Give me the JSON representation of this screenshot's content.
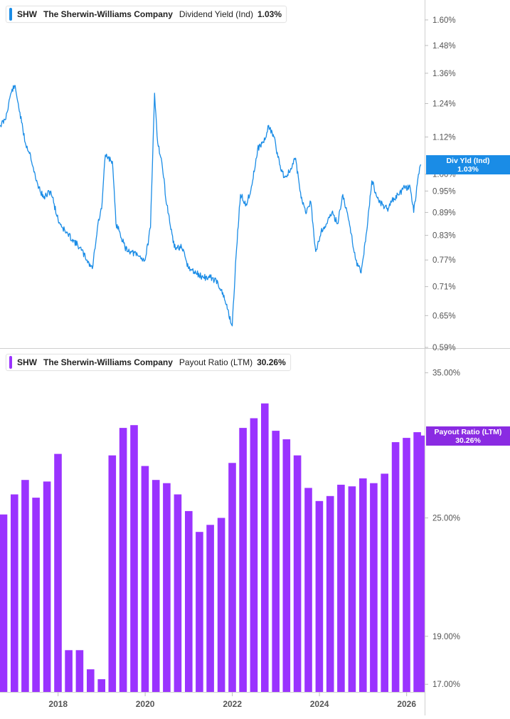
{
  "colors": {
    "yield_series": "#1a8ce6",
    "yield_flag": "#1a8ce6",
    "payout_series": "#9a33ff",
    "payout_flag": "#8a2be2",
    "grid": "#e6e6e6",
    "axis_text": "#555555"
  },
  "legend_top": {
    "ticker": "SHW",
    "company": "The Sherwin-Williams Company",
    "metric": "Dividend Yield (Ind)",
    "value": "1.03%"
  },
  "legend_bottom": {
    "ticker": "SHW",
    "company": "The Sherwin-Williams Company",
    "metric": "Payout Ratio (LTM)",
    "value": "30.26%"
  },
  "flag_top": {
    "label": "Div Yld (Ind)",
    "value": "1.03%"
  },
  "flag_bottom": {
    "label": "Payout Ratio (LTM)",
    "value": "30.26%"
  },
  "chart_data": [
    {
      "type": "line",
      "x_axis": "date",
      "x_range": [
        "2016-09-01",
        "2026-06-01"
      ],
      "y_scale": "log",
      "ylim": [
        0.59,
        1.7
      ],
      "y_ticks": [
        "1.60%",
        "1.48%",
        "1.36%",
        "1.24%",
        "1.12%",
        "1.00%",
        "0.95%",
        "0.89%",
        "0.83%",
        "0.77%",
        "0.71%",
        "0.65%",
        "0.59%"
      ],
      "grid": false,
      "series": [
        {
          "name": "Dividend Yield (Ind)",
          "unit": "%",
          "x": [
            "2016-09-01",
            "2016-10-15",
            "2016-12-01",
            "2017-01-01",
            "2017-02-01",
            "2017-03-01",
            "2017-04-01",
            "2017-05-15",
            "2017-07-01",
            "2017-09-01",
            "2017-11-01",
            "2018-01-01",
            "2018-03-01",
            "2018-05-01",
            "2018-07-01",
            "2018-09-01",
            "2018-10-15",
            "2018-12-01",
            "2019-01-01",
            "2019-02-01",
            "2019-04-01",
            "2019-05-01",
            "2019-06-01",
            "2019-07-15",
            "2019-09-01",
            "2019-11-01",
            "2020-01-01",
            "2020-02-15",
            "2020-03-20",
            "2020-04-15",
            "2020-05-15",
            "2020-07-01",
            "2020-09-01",
            "2020-11-01",
            "2021-01-01",
            "2021-03-01",
            "2021-05-01",
            "2021-07-01",
            "2021-09-01",
            "2021-11-01",
            "2021-12-31",
            "2022-02-01",
            "2022-03-10",
            "2022-05-01",
            "2022-06-20",
            "2022-08-01",
            "2022-10-01",
            "2022-11-01",
            "2022-12-15",
            "2023-02-01",
            "2023-03-15",
            "2023-05-01",
            "2023-06-15",
            "2023-07-31",
            "2023-09-15",
            "2023-10-20",
            "2023-12-01",
            "2024-01-15",
            "2024-03-01",
            "2024-04-15",
            "2024-06-01",
            "2024-07-15",
            "2024-09-15",
            "2024-11-01",
            "2024-12-15",
            "2025-01-31",
            "2025-03-15",
            "2025-05-01",
            "2025-06-15",
            "2025-08-01",
            "2025-09-15",
            "2025-11-01",
            "2025-12-15",
            "2026-01-31",
            "2026-03-01",
            "2026-04-10",
            "2026-04-30"
          ],
          "values": [
            1.16,
            1.18,
            1.28,
            1.31,
            1.24,
            1.17,
            1.1,
            1.06,
            0.98,
            0.93,
            0.95,
            0.87,
            0.84,
            0.82,
            0.8,
            0.77,
            0.75,
            0.86,
            0.9,
            1.06,
            1.04,
            0.86,
            0.84,
            0.8,
            0.79,
            0.78,
            0.77,
            0.85,
            1.28,
            1.1,
            1.05,
            0.91,
            0.8,
            0.8,
            0.75,
            0.74,
            0.73,
            0.73,
            0.72,
            0.68,
            0.63,
            0.78,
            0.94,
            0.91,
            0.98,
            1.08,
            1.11,
            1.16,
            1.12,
            1.03,
            0.99,
            1.01,
            1.05,
            0.93,
            0.89,
            0.92,
            0.79,
            0.84,
            0.86,
            0.89,
            0.86,
            0.94,
            0.85,
            0.77,
            0.74,
            0.84,
            0.98,
            0.93,
            0.91,
            0.9,
            0.93,
            0.94,
            0.96,
            0.96,
            0.89,
            1.0,
            1.03
          ]
        }
      ]
    },
    {
      "type": "bar",
      "x_axis": "date",
      "x_range": [
        "2016-09-01",
        "2026-06-01"
      ],
      "y_scale": "log",
      "ylim": [
        16.7,
        37.0
      ],
      "y_ticks": [
        "35.00%",
        "25.00%",
        "19.00%",
        "17.00%"
      ],
      "x_ticks": [
        "2018",
        "2020",
        "2022",
        "2024",
        "2026"
      ],
      "grid": false,
      "series": [
        {
          "name": "Payout Ratio (LTM)",
          "unit": "%",
          "x": [
            "2016-10-01",
            "2016-12-31",
            "2017-03-31",
            "2017-06-30",
            "2017-09-30",
            "2017-12-31",
            "2018-03-31",
            "2018-06-30",
            "2018-09-30",
            "2018-12-31",
            "2019-03-31",
            "2019-06-30",
            "2019-09-30",
            "2019-12-31",
            "2020-03-31",
            "2020-06-30",
            "2020-09-30",
            "2020-12-31",
            "2021-03-31",
            "2021-06-30",
            "2021-09-30",
            "2021-12-31",
            "2022-03-31",
            "2022-06-30",
            "2022-09-30",
            "2022-12-31",
            "2023-03-31",
            "2023-06-30",
            "2023-09-30",
            "2023-12-31",
            "2024-03-31",
            "2024-06-30",
            "2024-09-30",
            "2024-12-31",
            "2025-03-31",
            "2025-06-30",
            "2025-09-30",
            "2025-12-31",
            "2026-03-31",
            "2026-04-30"
          ],
          "values": [
            25.2,
            26.4,
            27.3,
            26.2,
            27.2,
            29.0,
            18.4,
            18.4,
            17.6,
            17.2,
            28.9,
            30.8,
            31.0,
            28.2,
            27.3,
            27.1,
            26.4,
            25.4,
            24.2,
            24.6,
            25.0,
            28.4,
            30.8,
            31.5,
            32.6,
            30.6,
            30.0,
            28.9,
            26.8,
            26.0,
            26.3,
            27.0,
            26.9,
            27.4,
            27.1,
            27.7,
            29.8,
            30.1,
            30.5,
            30.26
          ]
        }
      ]
    }
  ]
}
